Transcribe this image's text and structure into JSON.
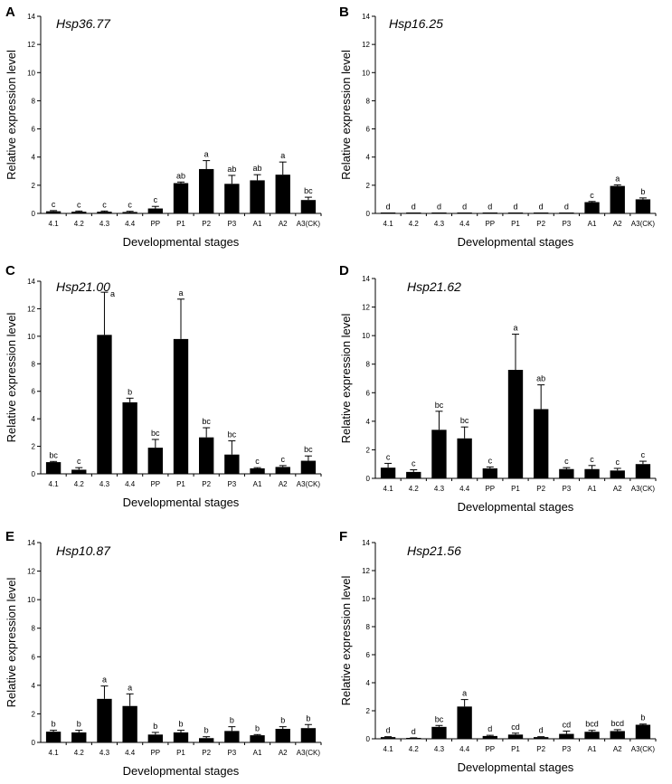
{
  "chart_data": [
    {
      "panel": "A",
      "type": "bar",
      "title": "Hsp36.77",
      "xlabel": "Developmental stages",
      "ylabel": "Relative expression level",
      "ylim": [
        0,
        14
      ],
      "yticks": [
        0,
        2,
        4,
        6,
        8,
        10,
        12,
        14
      ],
      "categories": [
        "4.1",
        "4.2",
        "4.3",
        "4.4",
        "PP",
        "P1",
        "P2",
        "P3",
        "A1",
        "A2",
        "A3(CK)"
      ],
      "values": [
        0.15,
        0.12,
        0.12,
        0.1,
        0.35,
        2.15,
        3.15,
        2.1,
        2.35,
        2.75,
        0.95
      ],
      "errors": [
        0.05,
        0.05,
        0.05,
        0.05,
        0.15,
        0.08,
        0.6,
        0.6,
        0.4,
        0.9,
        0.2
      ],
      "labels": [
        "c",
        "c",
        "c",
        "c",
        "c",
        "ab",
        "a",
        "ab",
        "ab",
        "a",
        "bc"
      ]
    },
    {
      "panel": "B",
      "type": "bar",
      "title": "Hsp16.25",
      "xlabel": "Developmental stages",
      "ylabel": "Relative expression level",
      "ylim": [
        0,
        14
      ],
      "yticks": [
        0,
        2,
        4,
        6,
        8,
        10,
        12,
        14
      ],
      "categories": [
        "4.1",
        "4.2",
        "4.3",
        "4.4",
        "PP",
        "P1",
        "P2",
        "P3",
        "A1",
        "A2",
        "A3(CK)"
      ],
      "values": [
        0.01,
        0.01,
        0.02,
        0.02,
        0.02,
        0.02,
        0.02,
        0.02,
        0.8,
        1.95,
        1.0
      ],
      "errors": [
        0.01,
        0.01,
        0.01,
        0.01,
        0.01,
        0.01,
        0.01,
        0.01,
        0.05,
        0.08,
        0.1
      ],
      "labels": [
        "d",
        "d",
        "d",
        "d",
        "d",
        "d",
        "d",
        "d",
        "c",
        "a",
        "b"
      ]
    },
    {
      "panel": "C",
      "type": "bar",
      "title": "Hsp21.00",
      "xlabel": "Developmental stages",
      "ylabel": "Relative expression level",
      "ylim": [
        0,
        14
      ],
      "yticks": [
        0,
        2,
        4,
        6,
        8,
        10,
        12,
        14
      ],
      "categories": [
        "4.1",
        "4.2",
        "4.3",
        "4.4",
        "PP",
        "P1",
        "P2",
        "P3",
        "A1",
        "A2",
        "A3(CK)"
      ],
      "values": [
        0.85,
        0.3,
        10.1,
        5.2,
        1.9,
        9.8,
        2.65,
        1.4,
        0.4,
        0.5,
        0.95
      ],
      "errors": [
        0.05,
        0.15,
        3.1,
        0.3,
        0.6,
        2.9,
        0.7,
        1.0,
        0.05,
        0.1,
        0.35
      ],
      "labels": [
        "bc",
        "c",
        "a",
        "b",
        "bc",
        "a",
        "bc",
        "bc",
        "c",
        "c",
        "bc"
      ]
    },
    {
      "panel": "D",
      "type": "bar",
      "title": "Hsp21.62",
      "xlabel": "Developmental stages",
      "ylabel": "Relative expression level",
      "ylim": [
        0,
        14
      ],
      "yticks": [
        0,
        2,
        4,
        6,
        8,
        10,
        12,
        14
      ],
      "categories": [
        "4.1",
        "4.2",
        "4.3",
        "4.4",
        "PP",
        "P1",
        "P2",
        "P3",
        "A1",
        "A2",
        "A3(CK)"
      ],
      "values": [
        0.75,
        0.45,
        3.4,
        2.8,
        0.7,
        7.6,
        4.85,
        0.65,
        0.65,
        0.55,
        1.0
      ],
      "errors": [
        0.3,
        0.15,
        1.3,
        0.8,
        0.1,
        2.5,
        1.7,
        0.1,
        0.25,
        0.15,
        0.2
      ],
      "labels": [
        "c",
        "c",
        "bc",
        "bc",
        "c",
        "a",
        "ab",
        "c",
        "c",
        "c",
        "c"
      ]
    },
    {
      "panel": "E",
      "type": "bar",
      "title": "Hsp10.87",
      "xlabel": "Developmental stages",
      "ylabel": "Relative expression level",
      "ylim": [
        0,
        14
      ],
      "yticks": [
        0,
        2,
        4,
        6,
        8,
        10,
        12,
        14
      ],
      "categories": [
        "4.1",
        "4.2",
        "4.3",
        "4.4",
        "PP",
        "P1",
        "P2",
        "P3",
        "A1",
        "A2",
        "A3(CK)"
      ],
      "values": [
        0.75,
        0.7,
        3.05,
        2.55,
        0.55,
        0.7,
        0.3,
        0.8,
        0.5,
        0.95,
        1.0
      ],
      "errors": [
        0.1,
        0.15,
        0.9,
        0.85,
        0.15,
        0.15,
        0.1,
        0.3,
        0.05,
        0.15,
        0.25
      ],
      "labels": [
        "b",
        "b",
        "a",
        "a",
        "b",
        "b",
        "b",
        "b",
        "b",
        "b",
        "b"
      ]
    },
    {
      "panel": "F",
      "type": "bar",
      "title": "Hsp21.56",
      "xlabel": "Developmental stages",
      "ylabel": "Relative expression level",
      "ylim": [
        0,
        14
      ],
      "yticks": [
        0,
        2,
        4,
        6,
        8,
        10,
        12,
        14
      ],
      "categories": [
        "4.1",
        "4.2",
        "4.3",
        "4.4",
        "PP",
        "P1",
        "P2",
        "P3",
        "A1",
        "A2",
        "A3(CK)"
      ],
      "values": [
        0.12,
        0.05,
        0.85,
        2.3,
        0.2,
        0.3,
        0.12,
        0.35,
        0.5,
        0.55,
        1.0
      ],
      "errors": [
        0.03,
        0.02,
        0.1,
        0.5,
        0.05,
        0.1,
        0.03,
        0.2,
        0.1,
        0.1,
        0.05
      ],
      "labels": [
        "d",
        "d",
        "bc",
        "a",
        "d",
        "cd",
        "d",
        "cd",
        "bcd",
        "bcd",
        "b"
      ]
    }
  ]
}
